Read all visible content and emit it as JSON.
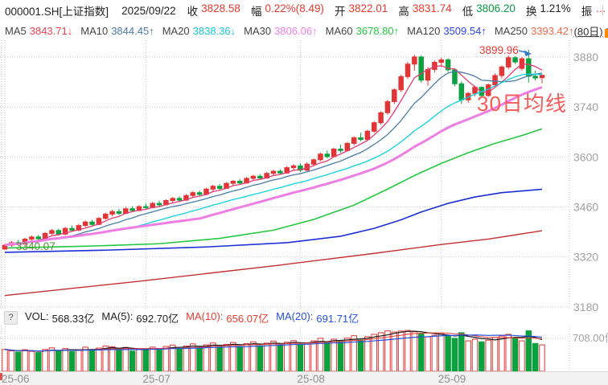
{
  "header": {
    "symbol": "000001.SH[上证指数]",
    "date": "2025/09/22",
    "fields": [
      {
        "label": "收",
        "value": "3828.58",
        "color": "#e83a31"
      },
      {
        "label": "幅",
        "value": "0.22%(8.49)",
        "color": "#e83a31"
      },
      {
        "label": "开",
        "value": "3822.01",
        "color": "#e83a31"
      },
      {
        "label": "高",
        "value": "3831.74",
        "color": "#e83a31"
      },
      {
        "label": "低",
        "value": "3806.20",
        "color": "#0a9a42"
      },
      {
        "label": "换",
        "value": "1.21%",
        "color": "#222222"
      },
      {
        "label": "振",
        "value": "…",
        "color": "#e83a31"
      }
    ]
  },
  "ma_legend": {
    "items": [
      {
        "label": "MA5",
        "value": "3843.71",
        "arrow": "↓",
        "color": "#ef424d"
      },
      {
        "label": "MA10",
        "value": "3844.45",
        "arrow": "↑",
        "color": "#4a7ba6"
      },
      {
        "label": "MA20",
        "value": "3838.36",
        "arrow": "↓",
        "color": "#17c6d4"
      },
      {
        "label": "MA30",
        "value": "3806.06",
        "arrow": "↑",
        "color": "#ee7ee4"
      },
      {
        "label": "MA60",
        "value": "3678.80",
        "arrow": "↑",
        "color": "#24c73f"
      },
      {
        "label": "MA120",
        "value": "3509.54",
        "arrow": "↑",
        "color": "#2a46e8"
      },
      {
        "label": "MA250",
        "value": "3393.42",
        "arrow": "↑",
        "color": "#f4694a"
      }
    ],
    "period_label": "(80日)"
  },
  "annotations": {
    "high_label": "3899.96",
    "low_label": "3340.07",
    "ma30_note": "30日均线",
    "vol_scale_label": "708.00亿"
  },
  "volume_legend": {
    "help": "?",
    "vol_label": "VOL:",
    "vol_value": "568.33亿",
    "ma5_label": "MA(5):",
    "ma5_value": "692.70亿",
    "ma10_label": "MA(10):",
    "ma10_value": "656.07亿",
    "ma20_label": "MA(20):",
    "ma20_value": "691.71亿"
  },
  "chart_data": {
    "type": "candlestick",
    "title": "000001.SH 上证指数 日K (80日)",
    "period_high": 3899.96,
    "period_low": 3340.07,
    "y_axis": {
      "ticks": [
        3880,
        3740,
        3600,
        3460,
        3320,
        3180
      ],
      "min": 3173,
      "max": 3927,
      "grid": "dotted"
    },
    "x_axis": {
      "labels": [
        "25-06",
        "25-07",
        "25-08",
        "25-09"
      ],
      "month_start_indices": [
        0,
        21,
        44,
        65
      ]
    },
    "volume_axis": {
      "tick": 708,
      "tick_label": "708.00亿"
    },
    "candles": [
      [
        3342,
        3356,
        3340.07,
        3353
      ],
      [
        3353,
        3365,
        3348,
        3360
      ],
      [
        3360,
        3368,
        3352,
        3356
      ],
      [
        3356,
        3374,
        3354,
        3370
      ],
      [
        3370,
        3380,
        3364,
        3376
      ],
      [
        3376,
        3382,
        3366,
        3371
      ],
      [
        3371,
        3390,
        3369,
        3386
      ],
      [
        3386,
        3398,
        3382,
        3394
      ],
      [
        3394,
        3399,
        3380,
        3384
      ],
      [
        3384,
        3404,
        3381,
        3400
      ],
      [
        3400,
        3408,
        3390,
        3395
      ],
      [
        3395,
        3412,
        3392,
        3408
      ],
      [
        3408,
        3422,
        3404,
        3418
      ],
      [
        3418,
        3424,
        3406,
        3411
      ],
      [
        3411,
        3432,
        3409,
        3428
      ],
      [
        3428,
        3444,
        3425,
        3440
      ],
      [
        3440,
        3452,
        3434,
        3447
      ],
      [
        3447,
        3455,
        3437,
        3442
      ],
      [
        3442,
        3460,
        3440,
        3455
      ],
      [
        3455,
        3462,
        3446,
        3450
      ],
      [
        3450,
        3465,
        3448,
        3461
      ],
      [
        3461,
        3470,
        3452,
        3458
      ],
      [
        3458,
        3474,
        3456,
        3470
      ],
      [
        3470,
        3478,
        3462,
        3466
      ],
      [
        3466,
        3482,
        3464,
        3478
      ],
      [
        3478,
        3488,
        3472,
        3484
      ],
      [
        3484,
        3490,
        3474,
        3479
      ],
      [
        3479,
        3496,
        3477,
        3492
      ],
      [
        3492,
        3504,
        3488,
        3500
      ],
      [
        3500,
        3506,
        3490,
        3495
      ],
      [
        3495,
        3514,
        3493,
        3510
      ],
      [
        3510,
        3522,
        3505,
        3518
      ],
      [
        3518,
        3524,
        3508,
        3512
      ],
      [
        3512,
        3530,
        3510,
        3526
      ],
      [
        3526,
        3536,
        3520,
        3532
      ],
      [
        3532,
        3538,
        3522,
        3527
      ],
      [
        3527,
        3544,
        3525,
        3540
      ],
      [
        3540,
        3550,
        3534,
        3546
      ],
      [
        3546,
        3552,
        3536,
        3541
      ],
      [
        3541,
        3558,
        3539,
        3554
      ],
      [
        3554,
        3564,
        3548,
        3560
      ],
      [
        3560,
        3566,
        3550,
        3555
      ],
      [
        3555,
        3574,
        3553,
        3570
      ],
      [
        3570,
        3580,
        3562,
        3575
      ],
      [
        3575,
        3582,
        3558,
        3563
      ],
      [
        3563,
        3585,
        3560,
        3580
      ],
      [
        3580,
        3596,
        3574,
        3592
      ],
      [
        3592,
        3612,
        3588,
        3608
      ],
      [
        3608,
        3618,
        3596,
        3601
      ],
      [
        3601,
        3626,
        3599,
        3622
      ],
      [
        3622,
        3634,
        3612,
        3618
      ],
      [
        3618,
        3642,
        3615,
        3638
      ],
      [
        3638,
        3658,
        3632,
        3654
      ],
      [
        3654,
        3668,
        3644,
        3649
      ],
      [
        3649,
        3676,
        3646,
        3672
      ],
      [
        3672,
        3700,
        3668,
        3696
      ],
      [
        3696,
        3728,
        3690,
        3724
      ],
      [
        3724,
        3760,
        3718,
        3755
      ],
      [
        3755,
        3792,
        3748,
        3788
      ],
      [
        3788,
        3830,
        3782,
        3825
      ],
      [
        3825,
        3866,
        3818,
        3860
      ],
      [
        3860,
        3886,
        3842,
        3880
      ],
      [
        3880,
        3885,
        3808,
        3815
      ],
      [
        3815,
        3852,
        3800,
        3845
      ],
      [
        3845,
        3870,
        3836,
        3865
      ],
      [
        3865,
        3878,
        3852,
        3872
      ],
      [
        3872,
        3876,
        3838,
        3844
      ],
      [
        3844,
        3848,
        3798,
        3805
      ],
      [
        3805,
        3812,
        3748,
        3760
      ],
      [
        3760,
        3782,
        3752,
        3778
      ],
      [
        3778,
        3800,
        3770,
        3795
      ],
      [
        3795,
        3798,
        3766,
        3772
      ],
      [
        3772,
        3806,
        3768,
        3802
      ],
      [
        3802,
        3834,
        3796,
        3828
      ],
      [
        3828,
        3856,
        3820,
        3852
      ],
      [
        3852,
        3884,
        3846,
        3878
      ],
      [
        3878,
        3882,
        3860,
        3866
      ],
      [
        3848,
        3880,
        3842,
        3875
      ],
      [
        3875,
        3899.96,
        3808,
        3826
      ],
      [
        3826,
        3842,
        3814,
        3821
      ],
      [
        3822.01,
        3831.74,
        3806.2,
        3828.58
      ]
    ],
    "volumes": [
      470,
      440,
      415,
      465,
      430,
      405,
      470,
      505,
      435,
      490,
      425,
      455,
      520,
      450,
      500,
      545,
      530,
      460,
      515,
      435,
      480,
      460,
      520,
      475,
      535,
      565,
      485,
      545,
      590,
      505,
      570,
      610,
      525,
      580,
      620,
      535,
      595,
      635,
      550,
      605,
      650,
      565,
      625,
      660,
      580,
      615,
      655,
      710,
      625,
      690,
      645,
      715,
      765,
      670,
      745,
      795,
      830,
      870,
      845,
      865,
      880,
      850,
      815,
      740,
      775,
      805,
      765,
      710,
      830,
      655,
      690,
      635,
      670,
      730,
      760,
      795,
      710,
      655,
      870,
      600,
      568.33
    ],
    "ma_short_periods": [
      5,
      10,
      20,
      30
    ],
    "ma_long": {
      "ma60": [
        [
          0,
          3345
        ],
        [
          12,
          3350
        ],
        [
          23,
          3357
        ],
        [
          32,
          3372
        ],
        [
          40,
          3395
        ],
        [
          46,
          3425
        ],
        [
          52,
          3465
        ],
        [
          57,
          3510
        ],
        [
          61,
          3548
        ],
        [
          65,
          3582
        ],
        [
          69,
          3612
        ],
        [
          73,
          3638
        ],
        [
          77,
          3660
        ],
        [
          80,
          3678.8
        ]
      ],
      "ma120": [
        [
          0,
          3333
        ],
        [
          15,
          3339
        ],
        [
          30,
          3348
        ],
        [
          42,
          3360
        ],
        [
          50,
          3378
        ],
        [
          55,
          3400
        ],
        [
          59,
          3424
        ],
        [
          62,
          3446
        ],
        [
          66,
          3470
        ],
        [
          70,
          3488
        ],
        [
          74,
          3500
        ],
        [
          80,
          3509.54
        ]
      ],
      "ma250": [
        [
          0,
          3212
        ],
        [
          20,
          3252
        ],
        [
          40,
          3295
        ],
        [
          55,
          3330
        ],
        [
          65,
          3355
        ],
        [
          72,
          3370
        ],
        [
          80,
          3393.42
        ]
      ]
    },
    "colors": {
      "up": "#e23535",
      "down": "#0aa13e",
      "ma5": "#e23a72",
      "ma10": "#4a7ba6",
      "ma20": "#0fd2dc",
      "ma30": "#ee7ee4",
      "ma60": "#24c73f",
      "ma120": "#1c2fd6",
      "ma250": "#c23030",
      "vol_ma5": "#1a1a1a",
      "vol_ma10": "#e83a3a",
      "vol_ma20": "#2550e0",
      "grid": "#c6c6c6",
      "tick_text": "#a0a0a6",
      "arrow": "#3a78c8"
    }
  }
}
